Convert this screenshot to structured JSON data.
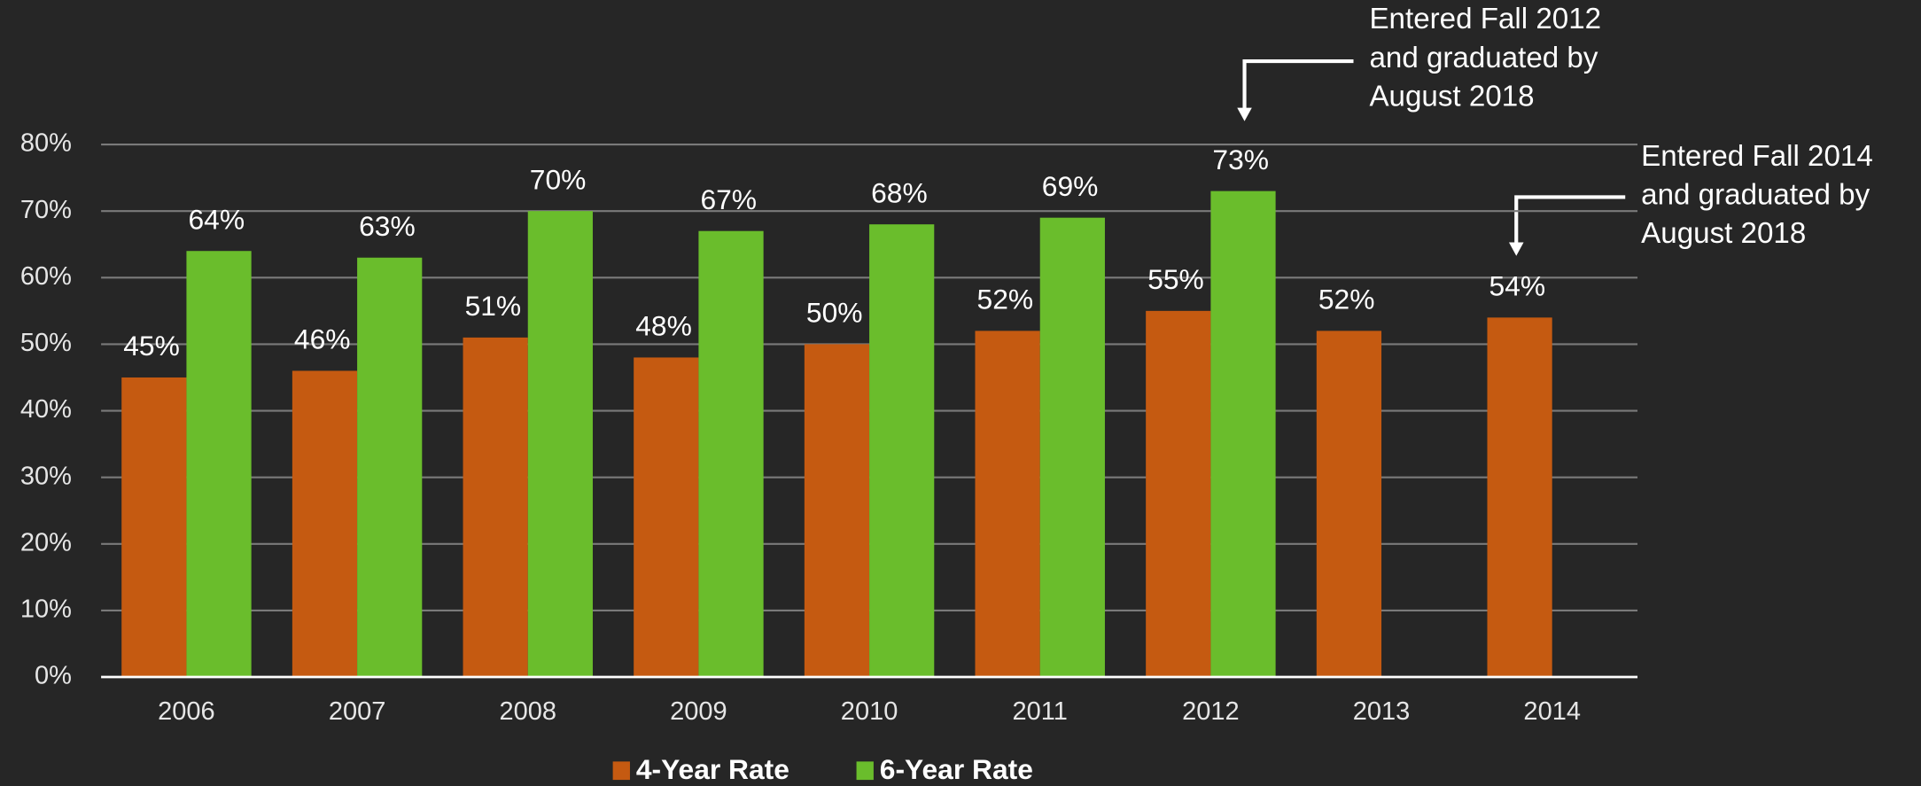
{
  "chart_data": {
    "type": "bar",
    "categories": [
      "2006",
      "2007",
      "2008",
      "2009",
      "2010",
      "2011",
      "2012",
      "2013",
      "2014"
    ],
    "series": [
      {
        "name": "4-Year Rate",
        "color": "#c55a11",
        "values": [
          45,
          46,
          51,
          48,
          50,
          52,
          55,
          52,
          54
        ],
        "value_labels": [
          "45%",
          "46%",
          "51%",
          "48%",
          "50%",
          "52%",
          "55%",
          "52%",
          "54%"
        ]
      },
      {
        "name": "6-Year Rate",
        "color": "#6abd2c",
        "values": [
          64,
          63,
          70,
          67,
          68,
          69,
          73,
          null,
          null
        ],
        "value_labels": [
          "64%",
          "63%",
          "70%",
          "67%",
          "68%",
          "69%",
          "73%",
          null,
          null
        ]
      }
    ],
    "ylim": [
      0,
      80
    ],
    "yticks": [
      {
        "value": 0,
        "label": "0%"
      },
      {
        "value": 10,
        "label": "10%"
      },
      {
        "value": 20,
        "label": "20%"
      },
      {
        "value": 30,
        "label": "30%"
      },
      {
        "value": 40,
        "label": "40%"
      },
      {
        "value": 50,
        "label": "50%"
      },
      {
        "value": 60,
        "label": "60%"
      },
      {
        "value": 70,
        "label": "70%"
      },
      {
        "value": 80,
        "label": "80%"
      }
    ],
    "grid": true,
    "legend": "bottom",
    "annotations": [
      {
        "lines": [
          "Entered Fall 2012",
          "and graduated by",
          "August 2018"
        ]
      },
      {
        "lines": [
          "Entered Fall 2014",
          "and graduated by",
          "August 2018"
        ]
      }
    ]
  }
}
